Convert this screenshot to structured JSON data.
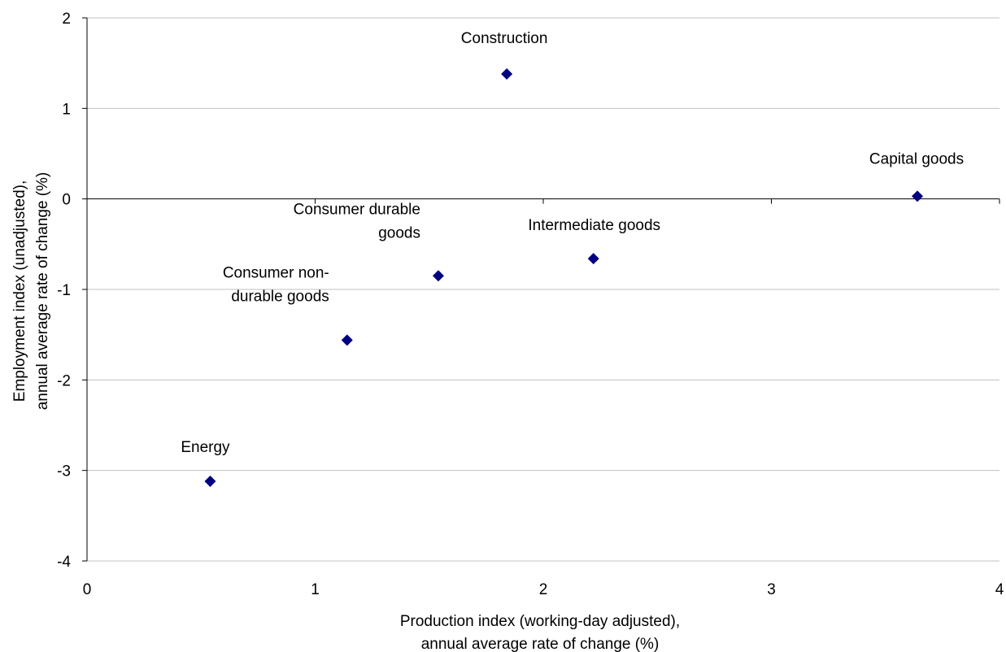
{
  "chart_data": {
    "type": "scatter",
    "title": "",
    "xlabel": [
      "Production index (working-day adjusted),",
      "annual average rate of change (%)"
    ],
    "ylabel": [
      "Employment index (unadjusted),",
      "annual average rate of change (%)"
    ],
    "xlim": [
      0,
      4
    ],
    "ylim": [
      -4,
      2
    ],
    "x_ticks": [
      0,
      1,
      2,
      3,
      4
    ],
    "y_ticks": [
      -4,
      -3,
      -2,
      -1,
      0,
      1,
      2
    ],
    "grid": "horizontal",
    "marker": "diamond",
    "colors": {
      "marker": "#000080",
      "grid": "#c0c0c0",
      "axis": "#000000"
    },
    "points": [
      {
        "label": [
          "Construction"
        ],
        "x": 1.84,
        "y": 1.38
      },
      {
        "label": [
          "Capital goods"
        ],
        "x": 3.64,
        "y": 0.03
      },
      {
        "label": [
          "Intermediate goods"
        ],
        "x": 2.22,
        "y": -0.66
      },
      {
        "label": [
          "Consumer durable",
          "goods"
        ],
        "x": 1.54,
        "y": -0.85
      },
      {
        "label": [
          "Consumer non-",
          "durable goods"
        ],
        "x": 1.14,
        "y": -1.56
      },
      {
        "label": [
          "Energy"
        ],
        "x": 0.54,
        "y": -3.12
      }
    ]
  }
}
